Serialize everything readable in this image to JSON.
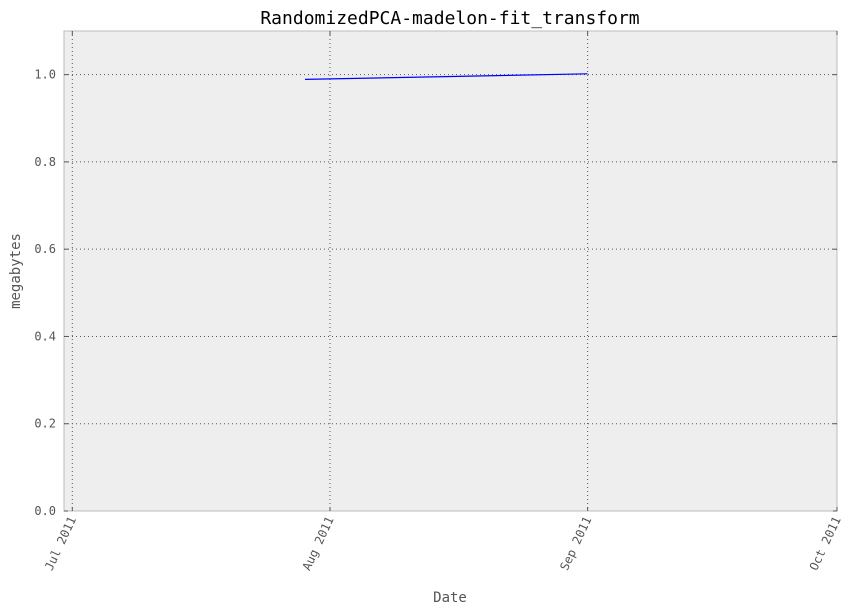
{
  "chart_data": {
    "type": "line",
    "title": "RandomizedPCA-madelon-fit_transform",
    "xlabel": "Date",
    "ylabel": "megabytes",
    "x_axis_type": "date",
    "xlim": [
      "2011-06-30",
      "2011-10-01"
    ],
    "ylim": [
      0.0,
      1.1
    ],
    "x_ticks": [
      {
        "date": "2011-07-01",
        "label": "Jul 2011"
      },
      {
        "date": "2011-08-01",
        "label": "Aug 2011"
      },
      {
        "date": "2011-09-01",
        "label": "Sep 2011"
      },
      {
        "date": "2011-10-01",
        "label": "Oct 2011"
      }
    ],
    "y_ticks": [
      {
        "value": 0.0,
        "label": "0.0"
      },
      {
        "value": 0.2,
        "label": "0.2"
      },
      {
        "value": 0.4,
        "label": "0.4"
      },
      {
        "value": 0.6,
        "label": "0.6"
      },
      {
        "value": 0.8,
        "label": "0.8"
      },
      {
        "value": 1.0,
        "label": "1.0"
      }
    ],
    "grid": true,
    "background_color": "#eeeeee",
    "frame_color": "#bcbcbc",
    "series": [
      {
        "color": "#0000ff",
        "points": [
          {
            "x": "2011-07-29",
            "y": 0.989
          },
          {
            "x": "2011-09-01",
            "y": 1.002
          }
        ]
      }
    ]
  }
}
